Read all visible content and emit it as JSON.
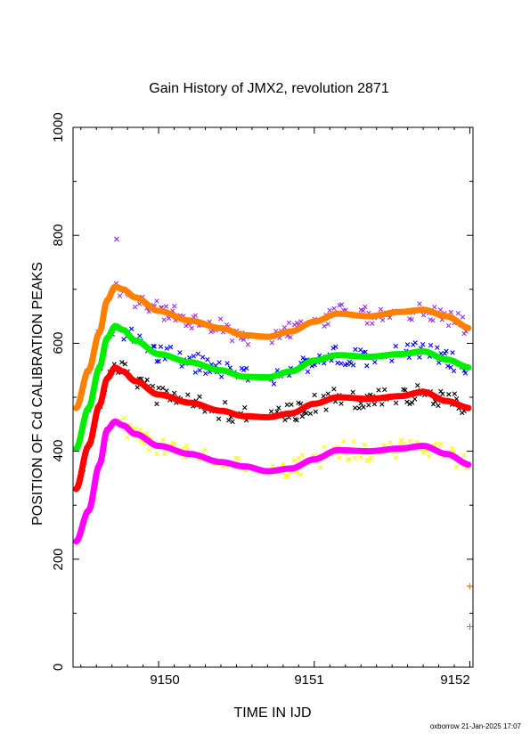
{
  "chart_data": {
    "type": "scatter",
    "title": "Gain History of JMX2, revolution 2871",
    "xlabel": "TIME IN IJD",
    "ylabel": "POSITION OF Cd CALIBRATION PEAKS",
    "xlim": [
      9149.45,
      9152.02
    ],
    "ylim": [
      0,
      1000
    ],
    "x_ticks": [
      "9150",
      "9151",
      "9152"
    ],
    "y_ticks": [
      "0",
      "200",
      "400",
      "600",
      "800",
      "1000"
    ],
    "grid": false,
    "legend": "none",
    "x_nodes": [
      9149.47,
      9149.55,
      9149.62,
      9149.67,
      9149.72,
      9149.77,
      9149.85,
      9150.0,
      9150.2,
      9150.4,
      9150.55,
      9150.7,
      9150.85,
      9151.0,
      9151.15,
      9151.35,
      9151.55,
      9151.7,
      9151.85,
      9152.0
    ],
    "series": [
      {
        "color": "#ff8000",
        "scatter_color": "#9a30e0",
        "values": [
          480,
          550,
          620,
          680,
          705,
          700,
          685,
          660,
          642,
          628,
          615,
          612,
          622,
          640,
          655,
          650,
          658,
          662,
          650,
          628
        ]
      },
      {
        "color": "#00ee00",
        "scatter_color": "#0000ff",
        "values": [
          405,
          480,
          555,
          610,
          632,
          625,
          605,
          580,
          565,
          550,
          538,
          537,
          548,
          568,
          578,
          575,
          580,
          585,
          570,
          555
        ]
      },
      {
        "color": "#ff0000",
        "scatter_color": "#000000",
        "values": [
          330,
          410,
          485,
          535,
          555,
          548,
          530,
          505,
          490,
          475,
          465,
          463,
          470,
          488,
          500,
          497,
          502,
          510,
          493,
          480
        ]
      },
      {
        "color": "#ff00ff",
        "scatter_color": "#ffff00",
        "values": [
          233,
          290,
          375,
          440,
          455,
          448,
          432,
          410,
          395,
          380,
          372,
          363,
          368,
          385,
          402,
          400,
          405,
          410,
          395,
          375
        ]
      }
    ],
    "extra_points": [
      {
        "x": 9152.0,
        "y": 150,
        "color": "#ff8000"
      },
      {
        "x": 9152.0,
        "y": 75,
        "color": "#00ee00"
      },
      {
        "x": 9149.73,
        "y": 793,
        "color": "#9a30e0"
      }
    ],
    "footer": "oxborrow 21-Jan-2025 17:07"
  }
}
